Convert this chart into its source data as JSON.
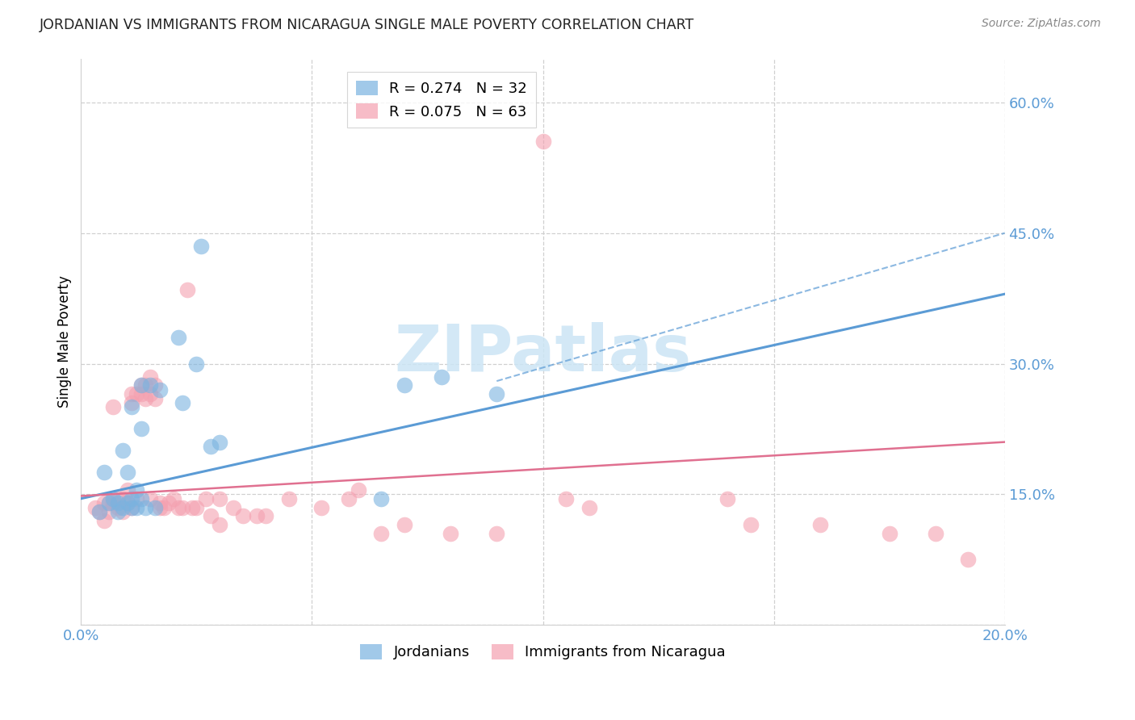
{
  "title": "JORDANIAN VS IMMIGRANTS FROM NICARAGUA SINGLE MALE POVERTY CORRELATION CHART",
  "source": "Source: ZipAtlas.com",
  "ylabel_label": "Single Male Poverty",
  "xlim": [
    0.0,
    0.2
  ],
  "ylim": [
    0.0,
    0.65
  ],
  "xticks": [
    0.0,
    0.05,
    0.1,
    0.15,
    0.2
  ],
  "xtick_labels": [
    "0.0%",
    "",
    "",
    "",
    "20.0%"
  ],
  "yticks": [
    0.0,
    0.15,
    0.3,
    0.45,
    0.6
  ],
  "ytick_labels": [
    "",
    "15.0%",
    "30.0%",
    "45.0%",
    "60.0%"
  ],
  "jordanians_color": "#7ab3e0",
  "nicaragua_color": "#f4a0b0",
  "watermark_color": "#cce5f5",
  "jordanians_x": [
    0.004,
    0.005,
    0.006,
    0.007,
    0.008,
    0.008,
    0.009,
    0.009,
    0.01,
    0.01,
    0.011,
    0.011,
    0.011,
    0.012,
    0.012,
    0.013,
    0.013,
    0.013,
    0.014,
    0.015,
    0.016,
    0.017,
    0.021,
    0.022,
    0.025,
    0.026,
    0.028,
    0.03,
    0.065,
    0.07,
    0.078,
    0.09
  ],
  "jordanians_y": [
    0.13,
    0.175,
    0.14,
    0.145,
    0.14,
    0.13,
    0.135,
    0.2,
    0.14,
    0.175,
    0.135,
    0.145,
    0.25,
    0.135,
    0.155,
    0.225,
    0.275,
    0.145,
    0.135,
    0.275,
    0.135,
    0.27,
    0.33,
    0.255,
    0.3,
    0.435,
    0.205,
    0.21,
    0.145,
    0.275,
    0.285,
    0.265
  ],
  "nicaragua_x": [
    0.003,
    0.004,
    0.005,
    0.005,
    0.006,
    0.006,
    0.007,
    0.007,
    0.008,
    0.008,
    0.009,
    0.009,
    0.01,
    0.01,
    0.011,
    0.011,
    0.011,
    0.012,
    0.012,
    0.013,
    0.013,
    0.014,
    0.014,
    0.015,
    0.015,
    0.015,
    0.016,
    0.016,
    0.017,
    0.017,
    0.018,
    0.019,
    0.02,
    0.021,
    0.022,
    0.023,
    0.024,
    0.025,
    0.027,
    0.028,
    0.03,
    0.03,
    0.033,
    0.035,
    0.038,
    0.04,
    0.045,
    0.052,
    0.058,
    0.06,
    0.065,
    0.07,
    0.08,
    0.09,
    0.1,
    0.105,
    0.11,
    0.14,
    0.145,
    0.16,
    0.175,
    0.185,
    0.192
  ],
  "nicaragua_y": [
    0.135,
    0.13,
    0.14,
    0.12,
    0.14,
    0.13,
    0.25,
    0.14,
    0.145,
    0.135,
    0.145,
    0.13,
    0.155,
    0.14,
    0.255,
    0.265,
    0.135,
    0.265,
    0.145,
    0.275,
    0.265,
    0.275,
    0.26,
    0.285,
    0.265,
    0.145,
    0.26,
    0.275,
    0.135,
    0.14,
    0.135,
    0.14,
    0.145,
    0.135,
    0.135,
    0.385,
    0.135,
    0.135,
    0.145,
    0.125,
    0.115,
    0.145,
    0.135,
    0.125,
    0.125,
    0.125,
    0.145,
    0.135,
    0.145,
    0.155,
    0.105,
    0.115,
    0.105,
    0.105,
    0.555,
    0.145,
    0.135,
    0.145,
    0.115,
    0.115,
    0.105,
    0.105,
    0.075
  ],
  "jordan_line_x": [
    0.0,
    0.2
  ],
  "jordan_line_y": [
    0.145,
    0.38
  ],
  "nicaragua_line_x": [
    0.0,
    0.2
  ],
  "nicaragua_line_y": [
    0.148,
    0.21
  ]
}
